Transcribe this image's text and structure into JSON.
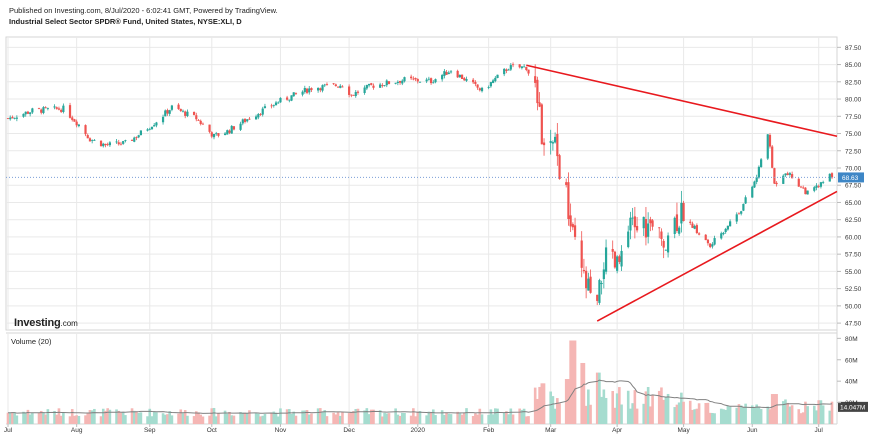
{
  "header": {
    "published": "Published on Investing.com, 8/Jul/2020 - 6:02:41 GMT, Powered by TradingView.",
    "instrument": "Industrial Select Sector SPDR® Fund, United States, NYSE:XLI, D"
  },
  "logo": {
    "main": "Investing",
    "sub": ".com"
  },
  "colors": {
    "up": "#26a69a",
    "down": "#ef5350",
    "trendline": "#e8191e",
    "volume_up": "#a5dccf",
    "volume_down": "#f5b6b4",
    "volume_ma": "#808080",
    "current_price_line": "#7b9fd8",
    "grid": "#e9e9e9"
  },
  "chart_data": {
    "type": "candlestick",
    "price_axis": {
      "ticks": [
        "87.50",
        "85.00",
        "82.50",
        "80.00",
        "77.50",
        "75.00",
        "72.50",
        "70.00",
        "67.50",
        "65.00",
        "62.50",
        "60.00",
        "57.50",
        "55.00",
        "52.50",
        "50.00",
        "47.50"
      ],
      "range": [
        46.5,
        89.0
      ]
    },
    "current_price": {
      "label": "68.63",
      "value": 68.63
    },
    "x_axis": {
      "labels": [
        "Jul",
        "Aug",
        "Sep",
        "Oct",
        "Nov",
        "Dec",
        "2020",
        "Feb",
        "Mar",
        "Apr",
        "May",
        "Jun",
        "Jul"
      ],
      "start": "2019-07-01",
      "end": "2020-07-07"
    },
    "volume_panel": {
      "title": "Volume (20)",
      "ticks": [
        "80M",
        "60M",
        "40M",
        "20M"
      ],
      "range": [
        0,
        85
      ],
      "current_label": "14.047M"
    },
    "anchors": [
      [
        "2019-07-01",
        77.2
      ],
      [
        "2019-07-12",
        78.3
      ],
      [
        "2019-07-26",
        78.6
      ],
      [
        "2019-08-02",
        76.3
      ],
      [
        "2019-08-07",
        74.2
      ],
      [
        "2019-08-14",
        73.3
      ],
      [
        "2019-08-23",
        73.6
      ],
      [
        "2019-08-28",
        74.6
      ],
      [
        "2019-09-06",
        76.8
      ],
      [
        "2019-09-13",
        78.8
      ],
      [
        "2019-09-24",
        77.2
      ],
      [
        "2019-10-02",
        74.6
      ],
      [
        "2019-10-08",
        75.3
      ],
      [
        "2019-10-18",
        77.3
      ],
      [
        "2019-10-31",
        79.6
      ],
      [
        "2019-11-15",
        81.6
      ],
      [
        "2019-11-29",
        82.1
      ],
      [
        "2019-12-03",
        80.6
      ],
      [
        "2019-12-12",
        81.9
      ],
      [
        "2019-12-27",
        82.8
      ],
      [
        "2020-01-08",
        82.6
      ],
      [
        "2020-01-17",
        84.2
      ],
      [
        "2020-01-31",
        81.2
      ],
      [
        "2020-02-12",
        84.6
      ],
      [
        "2020-02-20",
        84.6
      ],
      [
        "2020-02-24",
        81.6
      ],
      [
        "2020-02-28",
        72.2
      ],
      [
        "2020-03-04",
        72.8
      ],
      [
        "2020-03-09",
        65.6
      ],
      [
        "2020-03-12",
        59.6
      ],
      [
        "2020-03-16",
        54.5
      ],
      [
        "2020-03-23",
        49.2
      ],
      [
        "2020-03-26",
        56.6
      ],
      [
        "2020-04-01",
        55.5
      ],
      [
        "2020-04-08",
        61.6
      ],
      [
        "2020-04-14",
        61.6
      ],
      [
        "2020-04-21",
        59.3
      ],
      [
        "2020-04-29",
        63.3
      ],
      [
        "2020-05-05",
        61.6
      ],
      [
        "2020-05-13",
        58.6
      ],
      [
        "2020-05-18",
        60.6
      ],
      [
        "2020-05-27",
        64.1
      ],
      [
        "2020-06-03",
        68.6
      ],
      [
        "2020-06-08",
        75.2
      ],
      [
        "2020-06-11",
        67.6
      ],
      [
        "2020-06-16",
        69.6
      ],
      [
        "2020-06-26",
        66.3
      ],
      [
        "2020-07-02",
        67.6
      ],
      [
        "2020-07-06",
        68.9
      ],
      [
        "2020-07-07",
        68.63
      ]
    ],
    "volume_spikes": [
      [
        "2020-02-28",
        38
      ],
      [
        "2020-03-09",
        42
      ],
      [
        "2020-03-12",
        78
      ],
      [
        "2020-03-16",
        57
      ],
      [
        "2020-03-23",
        48
      ],
      [
        "2020-06-11",
        28
      ]
    ],
    "trendlines": [
      {
        "from": [
          "2020-02-20",
          84.9
        ],
        "to": [
          "2020-07-07",
          74.6
        ]
      },
      {
        "from": [
          "2020-03-23",
          47.8
        ],
        "to": [
          "2020-07-07",
          66.6
        ]
      }
    ]
  }
}
